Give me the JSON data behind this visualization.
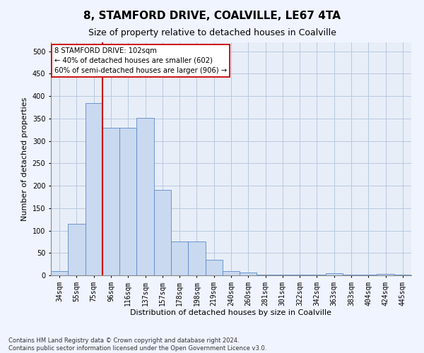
{
  "title": "8, STAMFORD DRIVE, COALVILLE, LE67 4TA",
  "subtitle": "Size of property relative to detached houses in Coalville",
  "xlabel": "Distribution of detached houses by size in Coalville",
  "ylabel": "Number of detached properties",
  "categories": [
    "34sqm",
    "55sqm",
    "75sqm",
    "96sqm",
    "116sqm",
    "137sqm",
    "157sqm",
    "178sqm",
    "198sqm",
    "219sqm",
    "240sqm",
    "260sqm",
    "281sqm",
    "301sqm",
    "322sqm",
    "342sqm",
    "363sqm",
    "383sqm",
    "404sqm",
    "424sqm",
    "445sqm"
  ],
  "values": [
    10,
    115,
    385,
    330,
    330,
    352,
    190,
    75,
    75,
    35,
    10,
    6,
    2,
    1,
    1,
    1,
    5,
    1,
    1,
    3,
    1
  ],
  "bar_color": "#c9d9f0",
  "bar_edge_color": "#5b8ac9",
  "marker_line_color": "#cc0000",
  "annotation_text": "8 STAMFORD DRIVE: 102sqm\n← 40% of detached houses are smaller (602)\n60% of semi-detached houses are larger (906) →",
  "annotation_box_color": "#ffffff",
  "annotation_box_edge_color": "#cc0000",
  "footnote1": "Contains HM Land Registry data © Crown copyright and database right 2024.",
  "footnote2": "Contains public sector information licensed under the Open Government Licence v3.0.",
  "ylim": [
    0,
    520
  ],
  "yticks": [
    0,
    50,
    100,
    150,
    200,
    250,
    300,
    350,
    400,
    450,
    500
  ],
  "background_color": "#f0f4ff",
  "plot_background": "#e8eef8",
  "grid_color": "#b8c8e0",
  "title_fontsize": 11,
  "subtitle_fontsize": 9,
  "tick_fontsize": 7,
  "axis_label_fontsize": 8,
  "red_line_index": 3
}
